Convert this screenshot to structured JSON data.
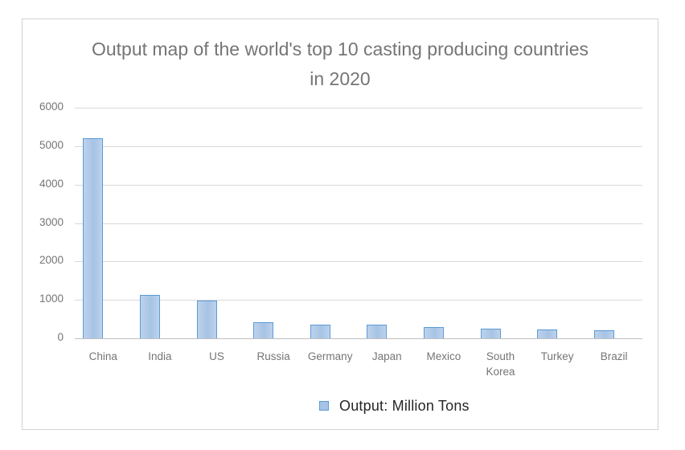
{
  "chart_data": {
    "type": "bar",
    "title": "Output map of the world's top 10 casting producing countries in 2020",
    "categories": [
      "China",
      "India",
      "US",
      "Russia",
      "Germany",
      "Japan",
      "Mexico",
      "South Korea",
      "Turkey",
      "Brazil"
    ],
    "values": [
      5200,
      1120,
      980,
      420,
      350,
      350,
      290,
      255,
      230,
      205
    ],
    "series_name": "Output: Million Tons",
    "xlabel": "",
    "ylabel": "",
    "ylim": [
      0,
      6000
    ],
    "yticks": [
      0,
      1000,
      2000,
      3000,
      4000,
      5000,
      6000
    ],
    "grid": true,
    "legend_position": "bottom"
  },
  "colors": {
    "frame_border": "#d3d3d3",
    "text_gray": "#757575",
    "grid": "#d9d9d9",
    "axis": "#bfbfbf",
    "bar_border": "#5b9bd5",
    "bar_fill": "#a6c3e5",
    "bar_fill_light": "#bdd2ec",
    "legend_text": "#262626"
  }
}
